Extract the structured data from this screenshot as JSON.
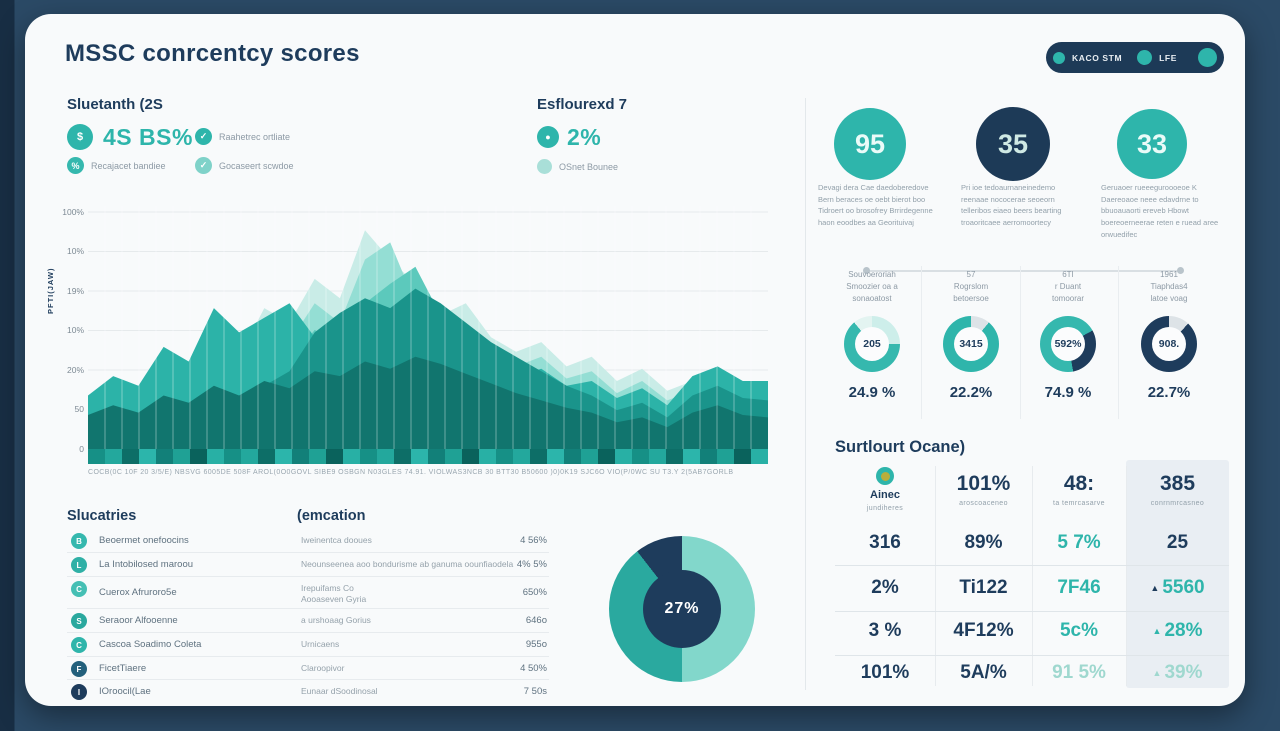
{
  "title": "MSSC conrcentcy scores",
  "header_pill": {
    "items": [
      {
        "label": "KACO STM"
      },
      {
        "label": "LFE"
      },
      {
        "label": ""
      }
    ]
  },
  "stats_left": {
    "heading": "Sluetanth (2S",
    "big_value": "4S BS%",
    "items": [
      "Raahetrec ortliate",
      "Recajacet bandiee",
      "Gocaseert scwdoe"
    ]
  },
  "stats_right": {
    "heading": "Esflourexd 7",
    "big_value": "2%",
    "items": [
      "OSnet Bounee"
    ]
  },
  "chart_data": [
    {
      "type": "area",
      "title": "",
      "ylabel": "PFTI(JAW)",
      "yticks": [
        "100%",
        "10%",
        "19%",
        "10%",
        "20%",
        "50",
        "0"
      ],
      "x_axis_text": "COCB(0C 10F 20 3/5/E) NBSVG 6005DE 508F AROL(0O0GOVL SIBE9 OSBGN N03GLES 74.91. VIOLWAS3NCB 30 BTT30 B50600 )0)0K19 SJC6O VIO(P/0WC SU T3.Y 2(5AB7GORLB",
      "grid": true,
      "vertical_lines": 40,
      "layers": [
        {
          "name": "layer-pale",
          "color": "#c9ece7",
          "values": [
            20,
            24,
            18,
            32,
            26,
            44,
            38,
            58,
            52,
            70,
            62,
            90,
            78,
            68,
            55,
            60,
            46,
            40,
            44,
            34,
            38,
            28,
            33,
            24,
            28,
            22,
            26,
            24
          ]
        },
        {
          "name": "layer-light",
          "color": "#94ded4",
          "values": [
            16,
            20,
            15,
            27,
            22,
            38,
            32,
            50,
            44,
            60,
            52,
            78,
            85,
            60,
            48,
            52,
            40,
            34,
            38,
            29,
            32,
            23,
            28,
            20,
            24,
            18,
            22,
            20
          ]
        },
        {
          "name": "layer-mid",
          "color": "#5cc9bc",
          "values": [
            13,
            16,
            12,
            22,
            18,
            31,
            26,
            41,
            36,
            49,
            43,
            60,
            68,
            75,
            55,
            44,
            33,
            28,
            31,
            24,
            26,
            19,
            23,
            16,
            20,
            15,
            18,
            16
          ]
        },
        {
          "name": "layer-teal",
          "color": "#2cb3a8",
          "values": [
            22,
            30,
            26,
            42,
            36,
            58,
            48,
            54,
            60,
            46,
            42,
            40,
            44,
            52,
            48,
            44,
            36,
            30,
            33,
            26,
            28,
            21,
            25,
            18,
            30,
            34,
            28,
            28
          ]
        },
        {
          "name": "layer-deep",
          "color": "#1a948b",
          "values": [
            10,
            13,
            11,
            16,
            14,
            20,
            17,
            26,
            32,
            48,
            56,
            62,
            58,
            66,
            60,
            52,
            44,
            38,
            32,
            26,
            22,
            16,
            19,
            13,
            22,
            26,
            21,
            20
          ]
        },
        {
          "name": "layer-darkest",
          "color": "#11756e",
          "values": [
            14,
            18,
            15,
            22,
            19,
            26,
            22,
            28,
            25,
            32,
            30,
            36,
            33,
            38,
            35,
            31,
            27,
            23,
            20,
            17,
            15,
            11,
            13,
            9,
            15,
            18,
            14,
            13
          ]
        }
      ],
      "band_colors": [
        "#169086",
        "#23a89d",
        "#0d6e67",
        "#2cb5ab",
        "#128079",
        "#1fa195",
        "#0a625c",
        "#28b0a5"
      ]
    },
    {
      "type": "pie",
      "center_label": "27%",
      "slices": [
        {
          "label": "segment-a",
          "value": 50.0,
          "color": "#82d7cb"
        },
        {
          "label": "segment-b",
          "value": 39.5,
          "color": "#2aa99f"
        },
        {
          "label": "segment-c",
          "value": 10.5,
          "color": "#1e3c5c"
        }
      ]
    },
    {
      "type": "donut",
      "lines": [
        "Souvoeroriah",
        "Smoozier oa a",
        "sonaoatost"
      ],
      "center": "205",
      "pct": "24.9 %",
      "segments": [
        {
          "value": 25,
          "color": "#cdeeea"
        },
        {
          "value": 64,
          "color": "#35b8ae"
        },
        {
          "value": 11,
          "color": "#e3f4f1"
        }
      ]
    },
    {
      "type": "donut",
      "lines": [
        "57",
        "Rogrslom",
        "betoersoe"
      ],
      "center": "3415",
      "pct": "22.2%",
      "segments": [
        {
          "value": 11,
          "color": "#dde3e7"
        },
        {
          "value": 89,
          "color": "#2fb5ab"
        }
      ]
    },
    {
      "type": "donut",
      "lines": [
        "6TI",
        "r Duant",
        "tomoorar"
      ],
      "center": "592%",
      "pct": "74.9 %",
      "segments": [
        {
          "value": 17,
          "color": "#35b8ae"
        },
        {
          "value": 30,
          "color": "#1e3c5c"
        },
        {
          "value": 53,
          "color": "#35b8ae"
        }
      ]
    },
    {
      "type": "donut",
      "lines": [
        "1961",
        "Tiaphdas4",
        "latoe voag"
      ],
      "center": "908.",
      "pct": "22.7%",
      "segments": [
        {
          "value": 12,
          "color": "#dde3e7"
        },
        {
          "value": 88,
          "color": "#1e3c5c"
        }
      ]
    }
  ],
  "left_table": {
    "col1_header": "Slucatries",
    "col2_header": "(emcation",
    "rows": [
      {
        "initial": "B",
        "icon_color": "#35b8ae",
        "name": "Beoermet onefoocins",
        "desc": "Iweinentca dooues",
        "value": "4 56%"
      },
      {
        "initial": "L",
        "icon_color": "#2fb0a6",
        "name": "La Intobilosed maroou",
        "desc": "Neounseenea aoo bondurisme ab ganuma oounfiaodela",
        "value": "4% 5%"
      },
      {
        "initial": "C",
        "icon_color": "#45bfb4",
        "name": "Cuerox Afruroro5e",
        "desc": "Irepuifams Co\nAooaseven Gyria",
        "value": "650%"
      },
      {
        "initial": "S",
        "icon_color": "#2aa89e",
        "name": "Seraoor Alfooenne",
        "desc": "a urshoaag Gorius",
        "value": "646o"
      },
      {
        "initial": "C",
        "icon_color": "#2fb5ab",
        "name": "Cascoa Soadimo Coleta",
        "desc": "Urnicaens",
        "value": "955o"
      },
      {
        "initial": "F",
        "icon_color": "#23607c",
        "name": "FicetTiaere",
        "desc": "Claroopivor",
        "value": "4 50%"
      },
      {
        "initial": "I",
        "icon_color": "#1e3c5c",
        "name": "IOroocil(Lae",
        "desc": "Eunaar dSoodinosal",
        "value": "7 50s"
      }
    ]
  },
  "right_panel": {
    "circles": [
      {
        "value": "95",
        "tone": "teal",
        "text": "Devagi dera Cae daedoberedove Bern beraces oe oebt bierot boo Tidroert oo brosofrey Brrirdegenne haon eoodbes aa Georituivaj"
      },
      {
        "value": "35",
        "tone": "navy",
        "text": "Pri ioe tedoaurnaneinedemo reenaae nococerae seoeorn telleribos eiaeo beers bearting troaoritcaee aerromoortecy"
      },
      {
        "value": "33",
        "tone": "teal",
        "text": "Geruaoer rueeeguroooeoe K Daereoaoe neee edavdrne to bbuoauaorti ereveb Hbowt boereoerneerae reten e ruead aree orwuedifec"
      }
    ],
    "table": {
      "title": "Surtlourt Ocane)",
      "header": [
        {
          "label": "Ainec",
          "sub": "jundiheres"
        },
        {
          "label": "101%",
          "sub": "aroscoaceneo"
        },
        {
          "label": "48:",
          "sub": "ta temrcasarve"
        },
        {
          "label": "385",
          "sub": "conrnmrcasneo"
        }
      ],
      "rows": [
        {
          "cells": [
            "316",
            "89%",
            "5 7%",
            "25"
          ]
        },
        {
          "cells": [
            "2%",
            "Ti122",
            "7F46",
            "5560"
          ]
        },
        {
          "cells": [
            "3 %",
            "4F12%",
            "5c%",
            "28%"
          ]
        },
        {
          "cells": [
            "101%",
            "5A/%",
            "91 5%",
            "39%"
          ]
        }
      ],
      "arrow_glyph": "▲"
    }
  },
  "colors": {
    "accent_teal": "#2eb5ab",
    "navy": "#1e3c5c",
    "page_background": "#2b4a66",
    "card_background": "#f8fafb"
  }
}
